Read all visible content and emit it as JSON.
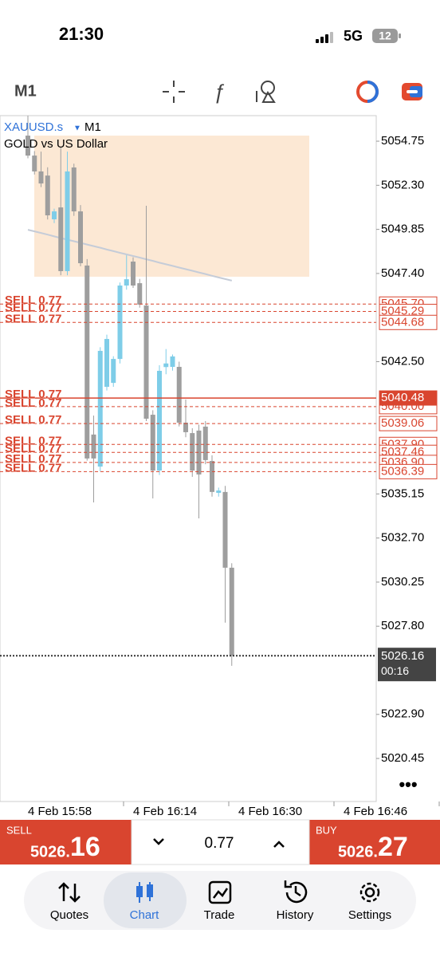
{
  "status_bar": {
    "time": "21:30",
    "network": "5G",
    "battery": "12"
  },
  "toolbar": {
    "timeframe": "M1"
  },
  "chart_data": {
    "type": "candlestick",
    "symbol": "XAUUSD.s",
    "timeframe": "M1",
    "description": "GOLD vs US Dollar",
    "up_color": "#7ecde8",
    "down_color": "#9e9e9e",
    "ylim": [
      5018.06,
      5056.17
    ],
    "yticks": [
      {
        "value": 5054.75,
        "label": "5054.75"
      },
      {
        "value": 5052.3,
        "label": "5052.30"
      },
      {
        "value": 5049.85,
        "label": "5049.85"
      },
      {
        "value": 5047.4,
        "label": "5047.40"
      },
      {
        "value": 5042.5,
        "label": "5042.50"
      },
      {
        "value": 5035.15,
        "label": "5035.15"
      },
      {
        "value": 5032.7,
        "label": "5032.70"
      },
      {
        "value": 5030.25,
        "label": "5030.25"
      },
      {
        "value": 5027.8,
        "label": "5027.80"
      },
      {
        "value": 5022.9,
        "label": "5022.90"
      },
      {
        "value": 5020.45,
        "label": "5020.45"
      }
    ],
    "xticks": [
      "4 Feb 15:58",
      "4 Feb 16:14",
      "4 Feb 16:30",
      "4 Feb 16:46"
    ],
    "zone": {
      "high": 5055.06,
      "low": 5047.22,
      "color": "#fce8d4"
    },
    "ma": {
      "color": "#c5ccd8",
      "values": [
        5049.83,
        5049.74,
        5049.65,
        5049.56,
        5049.46,
        5049.37,
        5049.28,
        5049.19,
        5049.1,
        5049.01,
        5048.92,
        5048.83,
        5048.73,
        5048.64,
        5048.55,
        5048.46,
        5048.37,
        5048.28,
        5048.19,
        5048.1,
        5048.0,
        5047.91,
        5047.82,
        5047.73,
        5047.64,
        5047.55,
        5047.46,
        5047.37,
        5047.27,
        5047.18,
        5047.09,
        5047.0
      ]
    },
    "open": [
      5055.06,
      5053.95,
      5053.07,
      5052.84,
      5050.41,
      5051.07,
      5047.53,
      5053.29,
      5050.85,
      5047.84,
      5038.45,
      5036.67,
      5041.1,
      5041.32,
      5042.65,
      5046.73,
      5048.06,
      5046.86,
      5045.62,
      5039.55,
      5036.45,
      5042.2,
      5042.21,
      5042.21,
      5039.11,
      5038.53,
      5038.67,
      5038.89,
      5036.98,
      5035.21,
      5035.26,
      5031.05
    ],
    "high": [
      5056.17,
      5054.2,
      5054.17,
      5053.3,
      5051.0,
      5054.4,
      5054.17,
      5053.5,
      5051.2,
      5048.2,
      5039.5,
      5043.3,
      5044.0,
      5042.8,
      5046.9,
      5048.41,
      5048.3,
      5047.1,
      5051.16,
      5039.8,
      5042.3,
      5043.2,
      5042.9,
      5042.5,
      5040.4,
      5038.8,
      5039.0,
      5039.2,
      5037.3,
      5035.5,
      5035.6,
      5031.3
    ],
    "low": [
      5053.8,
      5052.9,
      5052.2,
      5050.4,
      5050.2,
      5047.3,
      5047.3,
      5050.6,
      5047.8,
      5037.0,
      5034.68,
      5036.4,
      5040.9,
      5041.1,
      5042.4,
      5046.5,
      5046.6,
      5045.5,
      5039.2,
      5034.9,
      5036.2,
      5041.8,
      5042.0,
      5038.9,
      5038.3,
      5036.1,
      5033.79,
      5036.8,
      5035.0,
      5035.0,
      5028.0,
      5025.6
    ],
    "close": [
      5053.95,
      5053.07,
      5052.4,
      5050.63,
      5050.85,
      5047.53,
      5053.07,
      5050.85,
      5047.97,
      5037.12,
      5037.12,
      5043.1,
      5043.76,
      5042.65,
      5046.73,
      5047.08,
      5046.73,
      5045.67,
      5039.33,
      5036.45,
      5041.99,
      5042.4,
      5042.79,
      5039.11,
      5038.58,
      5036.45,
      5036.23,
      5037.03,
      5035.26,
      5035.34,
      5031.05,
      5026.16
    ],
    "orders": [
      {
        "label": "SELL 0.77",
        "price": {
          "value": 5045.7,
          "label": "5045.70"
        }
      },
      {
        "label": "SELL 0.77",
        "price": {
          "value": 5045.29,
          "label": "5045.29"
        }
      },
      {
        "label": "SELL 0.77",
        "price": {
          "value": 5044.68,
          "label": "5044.68"
        }
      },
      {
        "label": "SELL 0.77",
        "price": {
          "value": 5040.0,
          "label": "5040.00"
        }
      },
      {
        "label": "SELL 0.77",
        "price": {
          "value": 5039.06,
          "label": "5039.06"
        }
      },
      {
        "label": "SELL 0.77",
        "price": {
          "value": 5037.9,
          "label": "5037.90"
        }
      },
      {
        "label": "SELL 0.77",
        "price": {
          "value": 5037.46,
          "label": "5037.46"
        }
      },
      {
        "label": "SELL 0.77",
        "price": {
          "value": 5036.9,
          "label": "5036.90"
        }
      },
      {
        "label": "SELL 0.77",
        "price": {
          "value": 5036.39,
          "label": "5036.39"
        }
      },
      {
        "label": "SELL 0.77",
        "price": {
          "value": 5040.48,
          "label": "5040.48"
        },
        "selected": true
      }
    ],
    "order_color": "#d9452f",
    "current": {
      "price": {
        "value": 5026.16,
        "label": "5026.16"
      },
      "timer": "00:16"
    }
  },
  "trade_panel": {
    "sell": {
      "label": "SELL",
      "price_main": "5026.",
      "price_big": "16"
    },
    "volume": "0.77",
    "buy": {
      "label": "BUY",
      "price_main": "5026.",
      "price_big": "27"
    }
  },
  "nav": [
    "Quotes",
    "Chart",
    "Trade",
    "History",
    "Settings"
  ]
}
